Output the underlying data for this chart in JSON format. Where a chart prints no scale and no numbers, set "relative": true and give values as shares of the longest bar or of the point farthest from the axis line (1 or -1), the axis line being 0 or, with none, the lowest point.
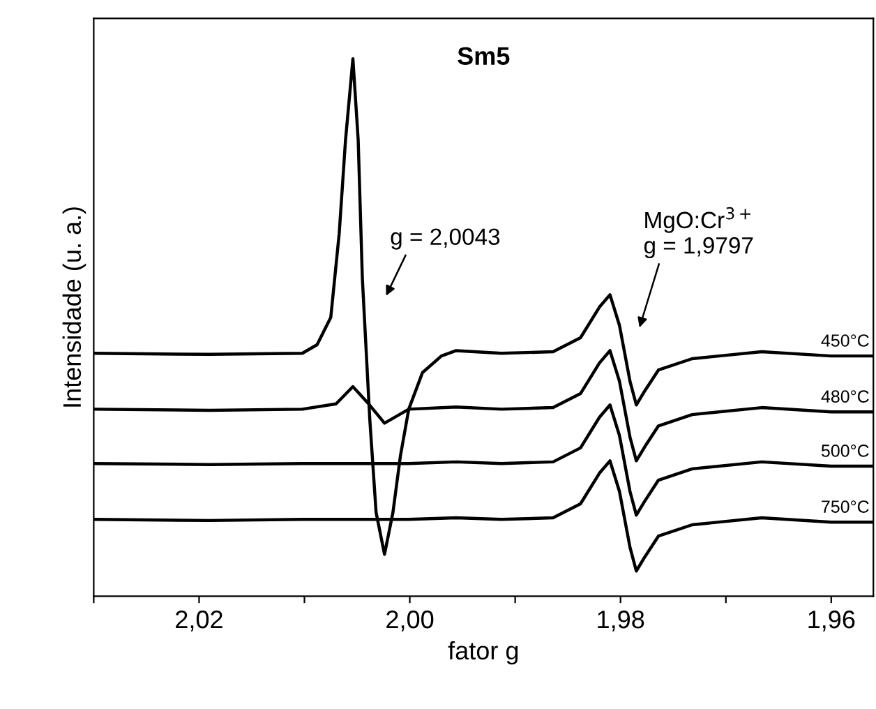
{
  "chart_data": {
    "type": "line",
    "title": "Sm5",
    "xlabel": "fator g",
    "ylabel": "Intensidade (u. a.)",
    "relative": true,
    "xlim": [
      2.03,
      1.956
    ],
    "xticks": [
      {
        "value": 2.03,
        "label": null
      },
      {
        "value": 2.02,
        "label": "2,02"
      },
      {
        "value": 2.01,
        "label": null
      },
      {
        "value": 2.0,
        "label": "2,00"
      },
      {
        "value": 1.99,
        "label": null
      },
      {
        "value": 1.98,
        "label": "1,98"
      },
      {
        "value": 1.97,
        "label": null
      },
      {
        "value": 1.96,
        "label": "1,96"
      }
    ],
    "tick_labels": "x",
    "grid": false,
    "legend": false,
    "marker": "none",
    "line_style": "solid",
    "annotations": [
      "g = 2,0043",
      "MgO:Cr$^{3+}$\ng = 1,9797"
    ],
    "series": [
      {
        "name": "450°C",
        "color": "#000000",
        "x": [
          2.03,
          2.019,
          2.0102,
          2.0088,
          2.0075,
          2.0067,
          2.0061,
          2.0054,
          2.0049,
          2.0045,
          2.0038,
          2.0032,
          2.0024,
          2.0016,
          2.0009,
          2.0001,
          1.9988,
          1.997,
          1.9956,
          1.9913,
          1.9864,
          1.9838,
          1.982,
          1.981,
          1.9801,
          1.9791,
          1.9785,
          1.9777,
          1.9764,
          1.9732,
          1.9666,
          1.96,
          1.956
        ],
        "values": [
          0.452,
          0.45,
          0.452,
          0.468,
          0.519,
          0.675,
          0.849,
          1.0,
          0.849,
          0.59,
          0.33,
          0.156,
          0.078,
          0.156,
          0.26,
          0.348,
          0.416,
          0.447,
          0.457,
          0.452,
          0.455,
          0.481,
          0.538,
          0.561,
          0.504,
          0.4,
          0.356,
          0.382,
          0.421,
          0.442,
          0.455,
          0.447,
          0.447
        ]
      },
      {
        "name": "480°C",
        "color": "#000000",
        "x": [
          2.03,
          2.019,
          2.0102,
          2.007,
          2.0054,
          2.004,
          2.0024,
          2.0001,
          1.9956,
          1.9913,
          1.9864,
          1.9838,
          1.982,
          1.981,
          1.9801,
          1.9791,
          1.9785,
          1.9777,
          1.9764,
          1.9732,
          1.9666,
          1.96,
          1.956
        ],
        "values": [
          0.348,
          0.346,
          0.348,
          0.358,
          0.39,
          0.36,
          0.322,
          0.348,
          0.352,
          0.348,
          0.351,
          0.377,
          0.434,
          0.457,
          0.4,
          0.296,
          0.252,
          0.278,
          0.317,
          0.338,
          0.351,
          0.343,
          0.343
        ]
      },
      {
        "name": "500°C",
        "color": "#000000",
        "x": [
          2.03,
          2.019,
          2.0102,
          2.0001,
          1.9956,
          1.9913,
          1.9864,
          1.9838,
          1.982,
          1.981,
          1.9801,
          1.9791,
          1.9785,
          1.9777,
          1.9764,
          1.9732,
          1.9666,
          1.96,
          1.956
        ],
        "values": [
          0.247,
          0.245,
          0.247,
          0.247,
          0.25,
          0.247,
          0.25,
          0.276,
          0.333,
          0.356,
          0.299,
          0.195,
          0.151,
          0.177,
          0.216,
          0.237,
          0.25,
          0.242,
          0.242
        ]
      },
      {
        "name": "750°C",
        "color": "#000000",
        "x": [
          2.03,
          2.019,
          2.0102,
          2.0001,
          1.9956,
          1.9913,
          1.9864,
          1.9838,
          1.982,
          1.981,
          1.9801,
          1.9791,
          1.9785,
          1.9777,
          1.9764,
          1.9732,
          1.9666,
          1.96,
          1.956
        ],
        "values": [
          0.143,
          0.141,
          0.143,
          0.143,
          0.146,
          0.143,
          0.146,
          0.172,
          0.229,
          0.252,
          0.195,
          0.091,
          0.047,
          0.073,
          0.112,
          0.133,
          0.146,
          0.138,
          0.138
        ]
      }
    ]
  }
}
